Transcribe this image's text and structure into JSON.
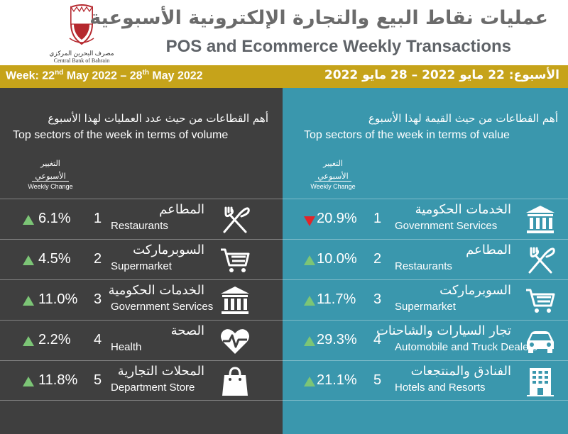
{
  "header": {
    "title_ar": "عمليات نقاط البيع والتجارة الإلكترونية الأسبوعية",
    "title_en": "POS and Ecommerce Weekly Transactions",
    "logo_caption_ar": "مصرف البحرين المركزي",
    "logo_caption_en": "Central Bank of Bahrain"
  },
  "week": {
    "en_prefix": "Week: 22",
    "en_sup1": "nd",
    "en_mid": " May 2022 – 28",
    "en_sup2": "th",
    "en_suffix": " May 2022",
    "ar": "الأسبوع: 22 مايو 2022 – 28 مايو 2022"
  },
  "left_panel": {
    "title_ar": "أهم القطاعات من حيث عدد العمليات لهذا الأسبوع",
    "title_en": "Top sectors of the week in terms of volume",
    "wc_ar1": "التغيير",
    "wc_ar2": "الأسبوعي",
    "wc_en": "Weekly Change",
    "rows": [
      {
        "direction": "up",
        "pct": "6.1%",
        "rank": "1",
        "name_ar": "المطاعم",
        "name_en": "Restaurants",
        "icon": "fork-knife-icon"
      },
      {
        "direction": "up",
        "pct": "4.5%",
        "rank": "2",
        "name_ar": "السوبرماركت",
        "name_en": "Supermarket",
        "icon": "shopping-cart-icon"
      },
      {
        "direction": "up",
        "pct": "11.0%",
        "rank": "3",
        "name_ar": "الخدمات الحكومية",
        "name_en": "Government Services",
        "icon": "government-building-icon"
      },
      {
        "direction": "up",
        "pct": "2.2%",
        "rank": "4",
        "name_ar": "الصحة",
        "name_en": "Health",
        "icon": "heart-pulse-icon"
      },
      {
        "direction": "up",
        "pct": "11.8%",
        "rank": "5",
        "name_ar": "المحلات التجارية",
        "name_en": "Department Store",
        "icon": "shopping-bag-icon"
      }
    ]
  },
  "right_panel": {
    "title_ar": "أهم القطاعات من حيث القيمة لهذا الأسبوع",
    "title_en": "Top sectors of the week in terms of value",
    "wc_ar1": "التغيير",
    "wc_ar2": "الأسبوعي",
    "wc_en": "Weekly Change",
    "rows": [
      {
        "direction": "down",
        "pct": "20.9%",
        "rank": "1",
        "name_ar": "الخدمات الحكومية",
        "name_en": "Government Services",
        "icon": "government-building-icon"
      },
      {
        "direction": "up",
        "pct": "10.0%",
        "rank": "2",
        "name_ar": "المطاعم",
        "name_en": "Restaurants",
        "icon": "fork-knife-icon"
      },
      {
        "direction": "up",
        "pct": "11.7%",
        "rank": "3",
        "name_ar": "السوبرماركت",
        "name_en": "Supermarket",
        "icon": "shopping-cart-icon"
      },
      {
        "direction": "up",
        "pct": "29.3%",
        "rank": "4",
        "name_ar": "تجار السيارات والشاحنات",
        "name_en": "Automobile and Truck Dealers",
        "icon": "car-icon"
      },
      {
        "direction": "up",
        "pct": "21.1%",
        "rank": "5",
        "name_ar": "الفنادق والمنتجعات",
        "name_en": "Hotels and Resorts",
        "icon": "hotel-building-icon"
      }
    ]
  },
  "colors": {
    "accent_gold": "#c6a31a",
    "left_bg": "#3f3f3f",
    "right_bg": "#3a97ad",
    "up_green": "#7cc576",
    "down_red": "#e0252a"
  }
}
